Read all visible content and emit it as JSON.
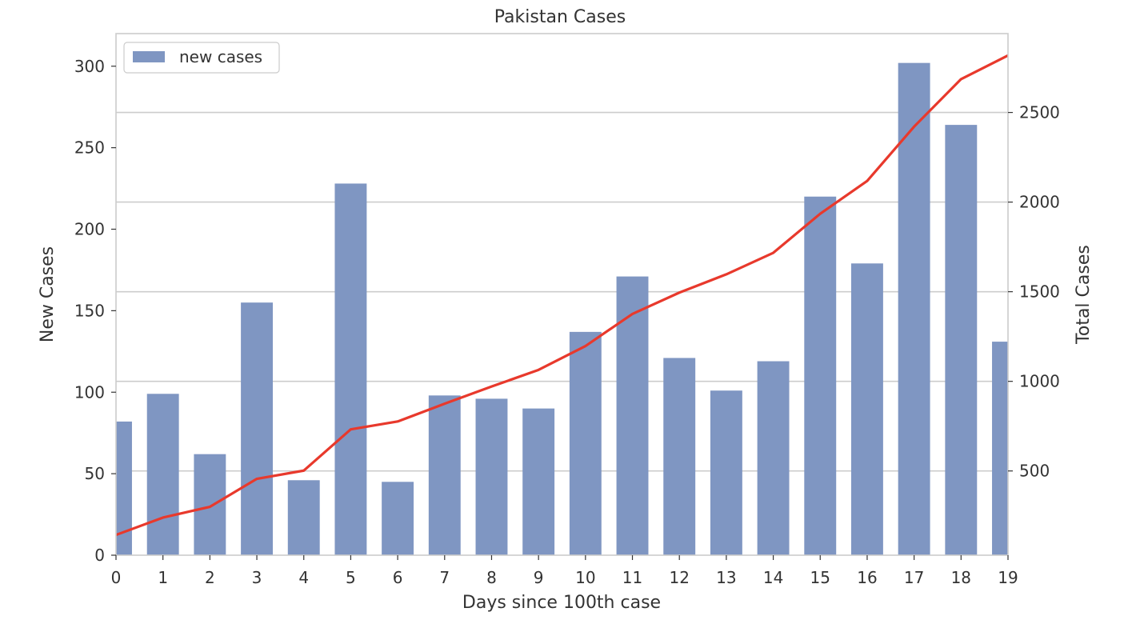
{
  "chart_data": {
    "type": "bar",
    "title": "Pakistan Cases",
    "xlabel": "Days since 100th case",
    "ylabel": "New Cases",
    "y2label": "Total Cases",
    "categories": [
      "0",
      "1",
      "2",
      "3",
      "4",
      "5",
      "6",
      "7",
      "8",
      "9",
      "10",
      "11",
      "12",
      "13",
      "14",
      "15",
      "16",
      "17",
      "18",
      "19"
    ],
    "series": [
      {
        "name": "new cases",
        "type": "bar",
        "axis": "left",
        "color": "#7f96c2",
        "values": [
          82,
          99,
          62,
          155,
          46,
          228,
          45,
          98,
          96,
          90,
          137,
          171,
          121,
          101,
          119,
          220,
          179,
          302,
          264,
          131
        ]
      },
      {
        "type": "line",
        "axis": "right",
        "color": "#e8392c",
        "values": [
          143,
          240,
          300,
          456,
          502,
          732,
          776,
          875,
          971,
          1064,
          1197,
          1376,
          1495,
          1597,
          1717,
          1935,
          2118,
          2421,
          2686,
          2818
        ]
      }
    ],
    "ylim": [
      0,
      320
    ],
    "y2lim": [
      30,
      2940
    ],
    "yticks": [
      0,
      50,
      100,
      150,
      200,
      250,
      300
    ],
    "y2ticks": [
      500,
      1000,
      1500,
      2000,
      2500
    ],
    "grid": true,
    "legend": "top-left"
  }
}
